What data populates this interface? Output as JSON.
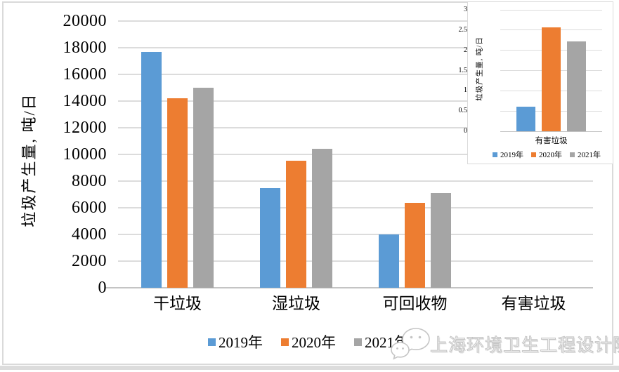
{
  "watermark": {
    "icon": "wechat-logo-icon",
    "text": "上海环境卫生工程设计院"
  },
  "legend": [
    "2019年",
    "2020年",
    "2021年"
  ],
  "colors": {
    "series_2019": "#5B9BD5",
    "series_2020": "#ED7D31",
    "series_2021": "#A5A5A5",
    "gridline": "#dcdcdc",
    "frame_border": "#dadada",
    "watermark_gray": "#c5c5c5"
  },
  "chart_data": [
    {
      "type": "bar",
      "title": "",
      "categories": [
        "干垃圾",
        "湿垃圾",
        "可回收物",
        "有害垃圾"
      ],
      "series": [
        {
          "name": "2019年",
          "color": "#5B9BD5",
          "values": [
            17700,
            7450,
            4000,
            0.6
          ]
        },
        {
          "name": "2020年",
          "color": "#ED7D31",
          "values": [
            14200,
            9500,
            6375,
            2.56
          ]
        },
        {
          "name": "2021年",
          "color": "#A5A5A5",
          "values": [
            15000,
            10400,
            7100,
            2.22
          ]
        }
      ],
      "xlabel": "",
      "ylabel": "垃圾产生量, 吨/日",
      "ylim": [
        0,
        20000
      ],
      "ytick_step": 2000,
      "grid": true,
      "legend_position": "bottom"
    },
    {
      "type": "bar",
      "title": "",
      "categories": [
        "有害垃圾"
      ],
      "series": [
        {
          "name": "2019年",
          "color": "#5B9BD5",
          "values": [
            0.6
          ]
        },
        {
          "name": "2020年",
          "color": "#ED7D31",
          "values": [
            2.56
          ]
        },
        {
          "name": "2021年",
          "color": "#A5A5A5",
          "values": [
            2.22
          ]
        }
      ],
      "xlabel": "",
      "ylabel": "垃圾产生量, 吨/日",
      "ylim": [
        0,
        3
      ],
      "ytick_step": 0.5,
      "grid": true,
      "legend_position": "bottom"
    }
  ]
}
